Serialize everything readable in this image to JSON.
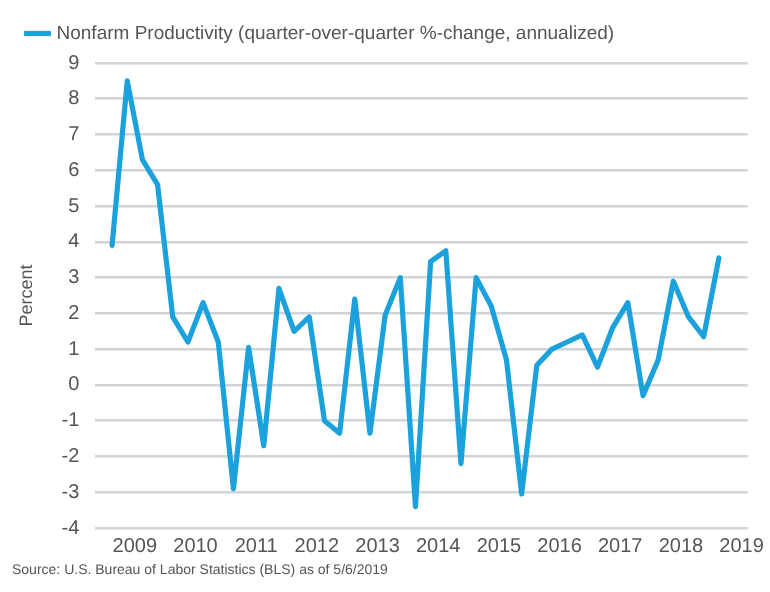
{
  "chart_data": {
    "type": "line",
    "ylabel": "Percent",
    "x": [
      2009.125,
      2009.375,
      2009.625,
      2009.875,
      2010.125,
      2010.375,
      2010.625,
      2010.875,
      2011.125,
      2011.375,
      2011.625,
      2011.875,
      2012.125,
      2012.375,
      2012.625,
      2012.875,
      2013.125,
      2013.375,
      2013.625,
      2013.875,
      2014.125,
      2014.375,
      2014.625,
      2014.875,
      2015.125,
      2015.375,
      2015.625,
      2015.875,
      2016.125,
      2016.375,
      2016.625,
      2016.875,
      2017.125,
      2017.375,
      2017.625,
      2017.875,
      2018.125,
      2018.375,
      2018.625,
      2018.875,
      2019.125
    ],
    "series": [
      {
        "name": "Nonfarm Productivity (quarter-over-quarter %-change, annualized)",
        "color": "#1ba1dc",
        "values": [
          3.9,
          8.5,
          6.3,
          5.6,
          1.9,
          1.2,
          2.3,
          1.2,
          -2.9,
          1.05,
          -1.7,
          2.7,
          1.5,
          1.9,
          -1.0,
          -1.35,
          2.4,
          -1.35,
          1.95,
          3.0,
          -3.4,
          3.45,
          3.75,
          -2.2,
          3.0,
          2.2,
          0.7,
          -3.05,
          0.55,
          1.0,
          1.2,
          1.4,
          0.5,
          1.6,
          2.3,
          -0.3,
          0.7,
          2.9,
          1.9,
          1.35,
          3.55
        ]
      }
    ],
    "xlim": [
      2008.85,
      2019.6
    ],
    "xticks": [
      {
        "value": 2009.5,
        "label": "2009"
      },
      {
        "value": 2010.5,
        "label": "2010"
      },
      {
        "value": 2011.5,
        "label": "2011"
      },
      {
        "value": 2012.5,
        "label": "2012"
      },
      {
        "value": 2013.5,
        "label": "2013"
      },
      {
        "value": 2014.5,
        "label": "2014"
      },
      {
        "value": 2015.5,
        "label": "2015"
      },
      {
        "value": 2016.5,
        "label": "2016"
      },
      {
        "value": 2017.5,
        "label": "2017"
      },
      {
        "value": 2018.5,
        "label": "2018"
      },
      {
        "value": 2019.5,
        "label": "2019"
      }
    ],
    "ylim": [
      -4,
      9
    ],
    "yticks": [
      -4,
      -3,
      -2,
      -1,
      0,
      1,
      2,
      3,
      4,
      5,
      6,
      7,
      8,
      9
    ],
    "grid": "y",
    "legend": "top left",
    "marker": "none",
    "line_style": "solid",
    "annotations": [
      "Source: U.S. Bureau of Labor Statistics (BLS) as of 5/6/2019"
    ]
  }
}
